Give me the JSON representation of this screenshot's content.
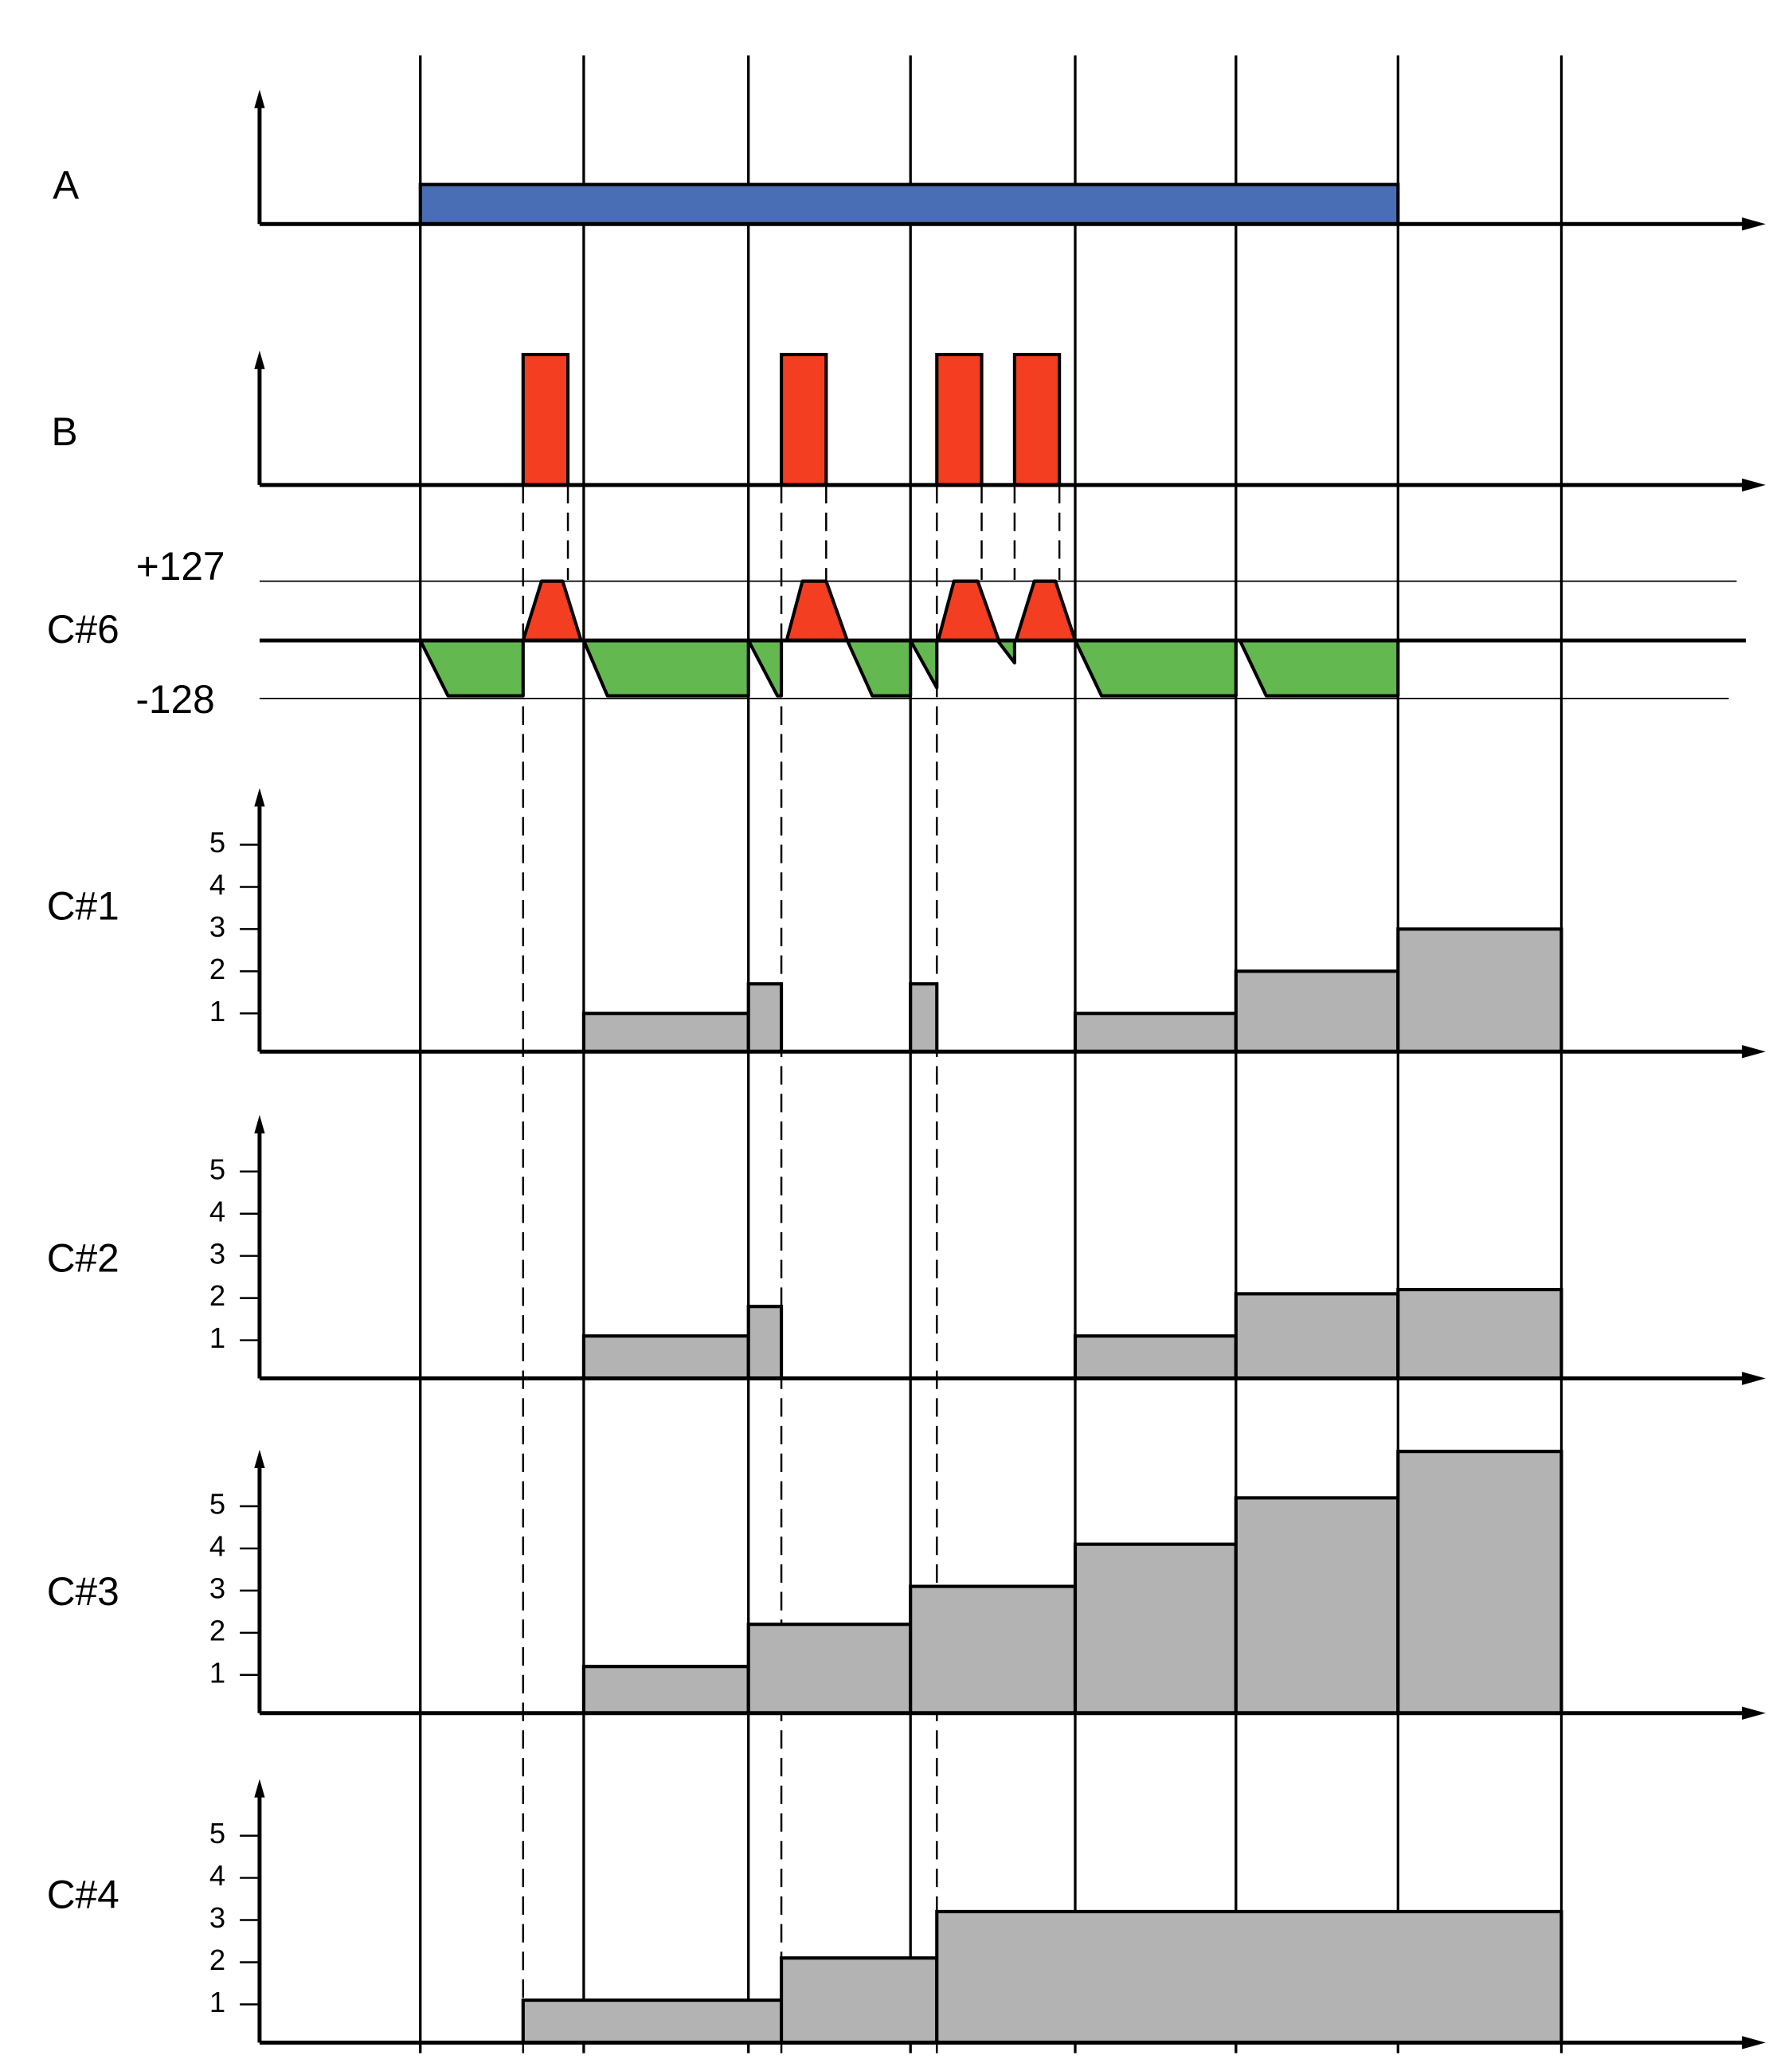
{
  "signals": {
    "a": "A",
    "b": "B",
    "c6": {
      "label": "C#6",
      "max": "+127",
      "min": "-128"
    }
  },
  "panels": [
    {
      "label": "C#1",
      "ticks": [
        1,
        2,
        3,
        4,
        5
      ],
      "levels": [
        1,
        1.7,
        1.7,
        1,
        2,
        3
      ]
    },
    {
      "label": "C#2",
      "ticks": [
        1,
        2,
        3,
        4,
        5
      ],
      "levels": [
        1.1,
        1.8,
        1.1,
        2.1,
        2.2
      ]
    },
    {
      "label": "C#3",
      "ticks": [
        1,
        2,
        3,
        4,
        5
      ],
      "levels": [
        1.2,
        2.2,
        3.1,
        4.1,
        5.2,
        6.3
      ]
    },
    {
      "label": "C#4",
      "ticks": [
        1,
        2,
        3,
        4,
        5
      ],
      "levels": [
        1.1,
        2.1,
        3.2
      ]
    }
  ]
}
